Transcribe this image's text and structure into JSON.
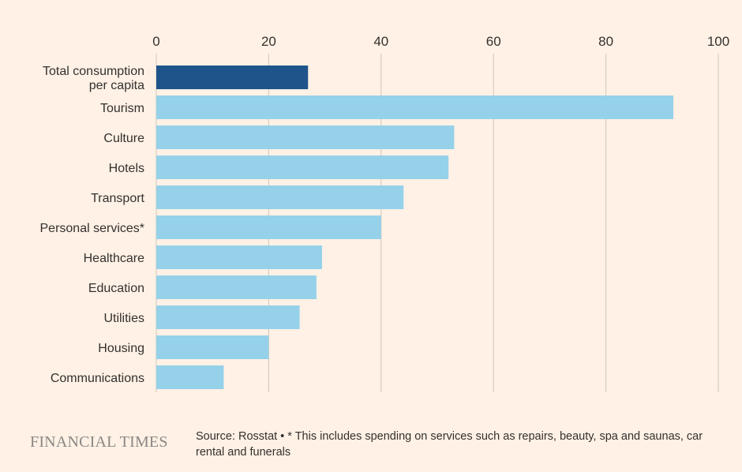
{
  "chart_data": {
    "type": "bar",
    "orientation": "horizontal",
    "title": "",
    "xlabel": "",
    "ylabel": "",
    "xlim": [
      0,
      100
    ],
    "x_ticks": [
      0,
      20,
      40,
      60,
      80,
      100
    ],
    "grid": true,
    "categories": [
      "Total consumption per capita",
      "Tourism",
      "Culture",
      "Hotels",
      "Transport",
      "Personal services*",
      "Healthcare",
      "Education",
      "Utilities",
      "Housing",
      "Communications"
    ],
    "values": [
      27,
      92,
      53,
      52,
      44,
      40,
      29.5,
      28.5,
      25.5,
      20,
      12
    ],
    "highlight_index": 0,
    "colors": {
      "highlight": "#1F548A",
      "bar": "#96D1EA",
      "grid": "#CEC6B9",
      "background": "#FFF1E5"
    }
  },
  "footer": {
    "brand": "FINANCIAL TIMES",
    "source": "Source: Rosstat • * This includes spending on services such as repairs, beauty, spa and saunas, car rental and funerals"
  }
}
